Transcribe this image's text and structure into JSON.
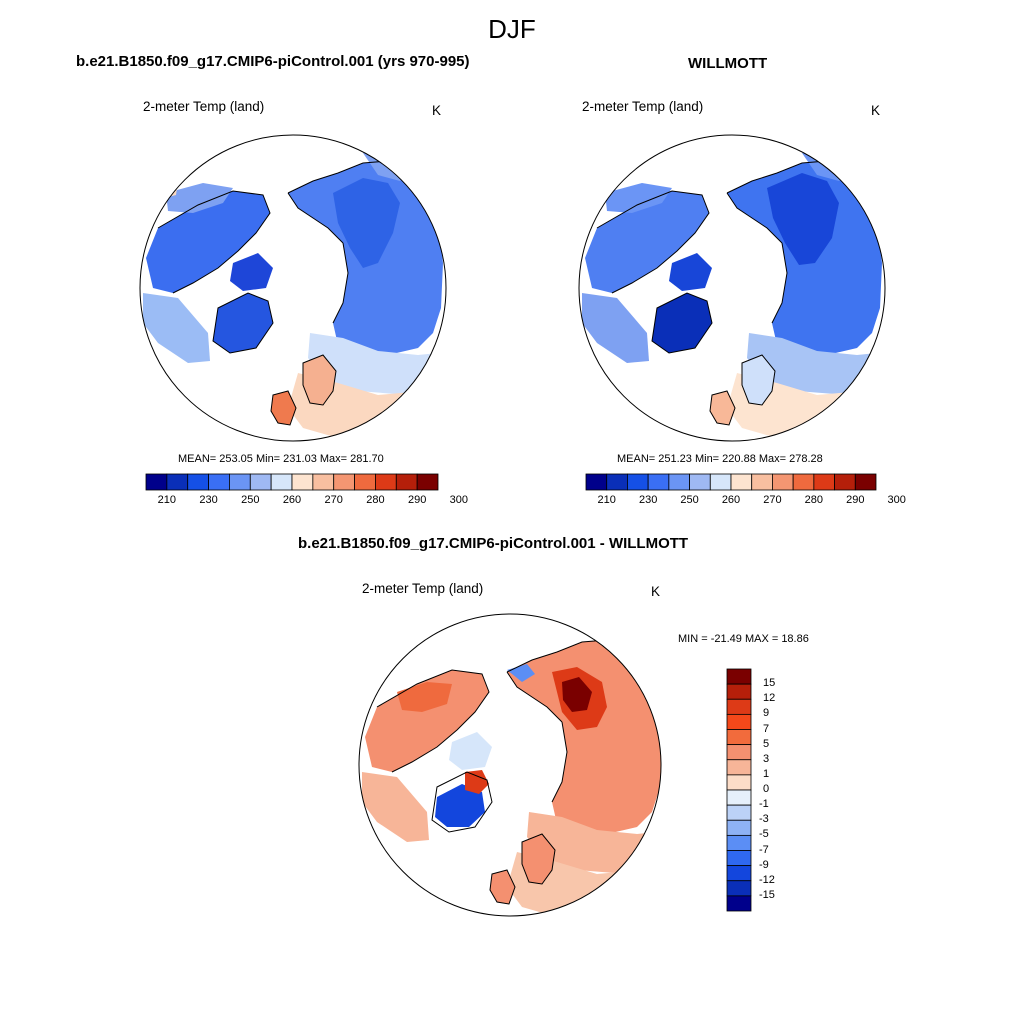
{
  "figure": {
    "title": "DJF"
  },
  "panels": [
    {
      "id": "model",
      "title": "b.e21.B1850.f09_g17.CMIP6-piControl.001 (yrs 970-995)",
      "variable": "2-meter Temp (land)",
      "units": "K",
      "stats_text": "MEAN= 253.05  Min= 231.03  Max= 281.70",
      "mean": 253.05,
      "min": 231.03,
      "max": 281.7
    },
    {
      "id": "obs",
      "title": "WILLMOTT",
      "variable": "2-meter Temp (land)",
      "units": "K",
      "stats_text": "MEAN= 251.23  Min= 220.88  Max= 278.28",
      "mean": 251.23,
      "min": 220.88,
      "max": 278.28
    },
    {
      "id": "diff",
      "title": "b.e21.B1850.f09_g17.CMIP6-piControl.001 - WILLMOTT",
      "variable": "2-meter Temp (land)",
      "units": "K",
      "stats_text": "MIN = -21.49 MAX =  18.86",
      "min": -21.49,
      "max": 18.86
    }
  ],
  "colorbars": {
    "temperature": {
      "orientation": "horizontal",
      "colors": [
        "#00008b",
        "#0a2fb8",
        "#1550e6",
        "#3a6ff5",
        "#6b95f5",
        "#9fb9f3",
        "#d6e6fa",
        "#fde4d0",
        "#f8bfa0",
        "#f49672",
        "#ef6a3e",
        "#dd3a17",
        "#b51f0a",
        "#7a0000"
      ],
      "tick_labels": [
        "210",
        "230",
        "250",
        "260",
        "270",
        "280",
        "290",
        "300"
      ]
    },
    "difference": {
      "orientation": "vertical",
      "colors": [
        "#7a0000",
        "#b51f0a",
        "#dd3a17",
        "#f4481a",
        "#f26b3c",
        "#f49070",
        "#f7b598",
        "#fcddc8",
        "#e6f0fb",
        "#bcd2f7",
        "#8eb2f5",
        "#5b8ef5",
        "#2f68f0",
        "#1346dd",
        "#0a2fb8",
        "#00008b"
      ],
      "tick_labels": [
        "15",
        "12",
        "9",
        "7",
        "5",
        "3",
        "1",
        "0",
        "-1",
        "-3",
        "-5",
        "-7",
        "-9",
        "-12",
        "-15"
      ]
    }
  },
  "chart_data": [
    {
      "type": "heatmap",
      "title": "b.e21.B1850.f09_g17.CMIP6-piControl.001 (yrs 970-995)",
      "subtitle": "2-meter Temp (land)",
      "units": "K",
      "projection": "polar-stereographic-north",
      "levels": [
        210,
        220,
        230,
        240,
        250,
        255,
        260,
        265,
        270,
        275,
        280,
        290,
        300
      ],
      "mean": 253.05,
      "min": 231.03,
      "max": 281.7
    },
    {
      "type": "heatmap",
      "title": "WILLMOTT",
      "subtitle": "2-meter Temp (land)",
      "units": "K",
      "projection": "polar-stereographic-north",
      "levels": [
        210,
        220,
        230,
        240,
        250,
        255,
        260,
        265,
        270,
        275,
        280,
        290,
        300
      ],
      "mean": 251.23,
      "min": 220.88,
      "max": 278.28
    },
    {
      "type": "heatmap",
      "title": "b.e21.B1850.f09_g17.CMIP6-piControl.001 - WILLMOTT",
      "subtitle": "2-meter Temp (land)",
      "units": "K",
      "projection": "polar-stereographic-north",
      "levels": [
        -15,
        -12,
        -9,
        -7,
        -5,
        -3,
        -1,
        0,
        1,
        3,
        5,
        7,
        9,
        12,
        15
      ],
      "min": -21.49,
      "max": 18.86
    }
  ]
}
